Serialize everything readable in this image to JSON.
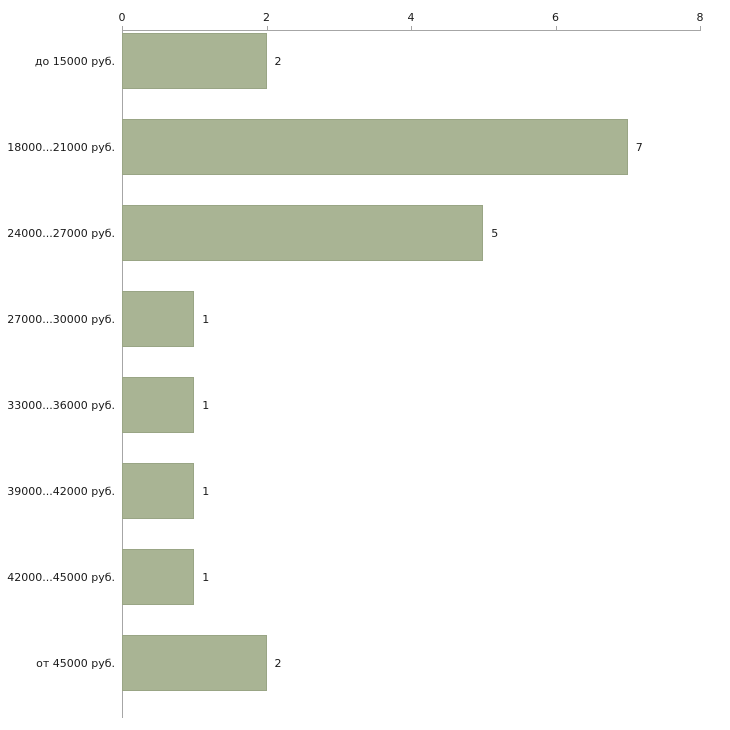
{
  "chart_data": {
    "type": "bar",
    "orientation": "horizontal",
    "title": "",
    "xlabel": "",
    "ylabel": "",
    "categories": [
      "до 15000 руб.",
      "18000...21000 руб.",
      "24000...27000 руб.",
      "27000...30000 руб.",
      "33000...36000 руб.",
      "39000...42000 руб.",
      "42000...45000 руб.",
      "от 45000 руб."
    ],
    "values": [
      2,
      7,
      5,
      1,
      1,
      1,
      1,
      2
    ],
    "xlim": [
      0,
      8
    ],
    "x_ticks": [
      0,
      2,
      4,
      6,
      8
    ],
    "grid": false,
    "legend": false,
    "value_labels_shown": true,
    "colors": {
      "bar_fill": "#a9b494",
      "bar_border": "#99a585",
      "axis": "#a6a6a6",
      "text": "#1a1a1a",
      "background": "#ffffff"
    }
  }
}
